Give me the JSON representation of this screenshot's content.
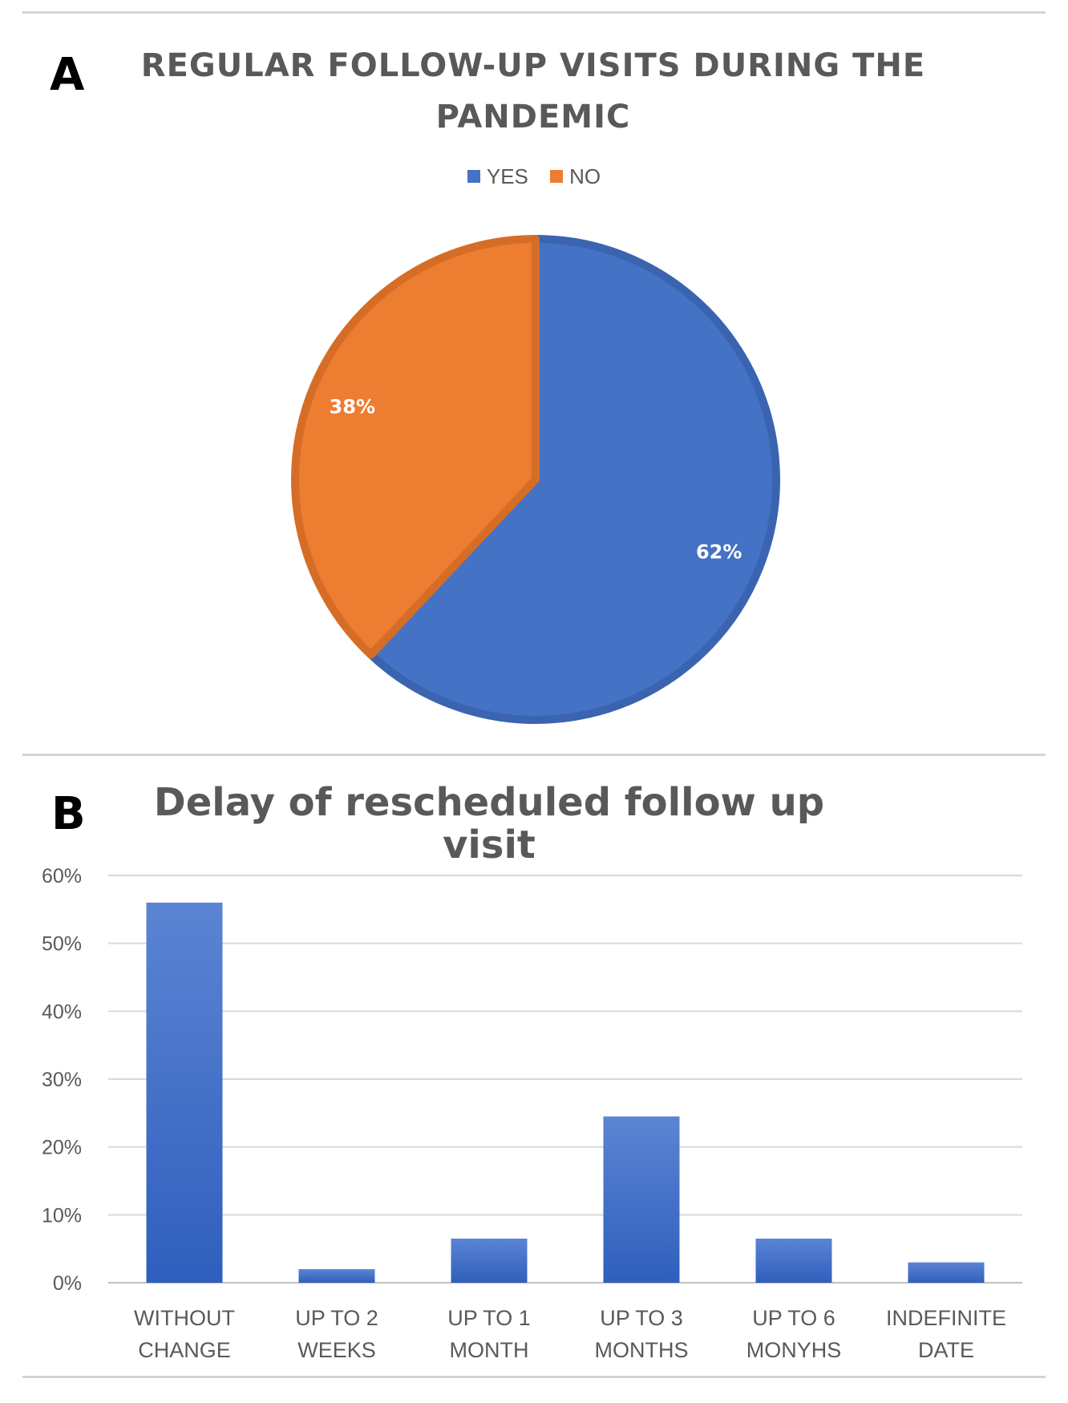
{
  "panel_a": {
    "letter": "A",
    "title_line1": "REGULAR FOLLOW-UP VISITS DURING THE",
    "title_line2": "PANDEMIC"
  },
  "panel_b": {
    "letter": "B",
    "title": "Delay of rescheduled follow up visit"
  },
  "chart_data": [
    {
      "type": "pie",
      "title": "REGULAR FOLLOW-UP VISITS DURING THE PANDEMIC",
      "legend": "top",
      "slices": [
        {
          "label": "YES",
          "value": 62,
          "display": "62%",
          "color": "#4472c4"
        },
        {
          "label": "NO",
          "value": 38,
          "display": "38%",
          "color": "#ed7d31"
        }
      ]
    },
    {
      "type": "bar",
      "title": "Delay of rescheduled follow up visit",
      "categories": [
        [
          "WITHOUT",
          "CHANGE"
        ],
        [
          "UP TO 2",
          "WEEKS"
        ],
        [
          "UP TO 1",
          "MONTH"
        ],
        [
          "UP TO 3",
          "MONTHS"
        ],
        [
          "UP TO 6",
          "MONYHS"
        ],
        [
          "INDEFINITE",
          "DATE"
        ]
      ],
      "values": [
        56,
        2,
        6.5,
        24.5,
        6.5,
        3
      ],
      "ylim": [
        0,
        60
      ],
      "yticks": [
        "0%",
        "10%",
        "20%",
        "30%",
        "40%",
        "50%",
        "60%"
      ],
      "grid": true,
      "color": "#4472c4"
    }
  ]
}
